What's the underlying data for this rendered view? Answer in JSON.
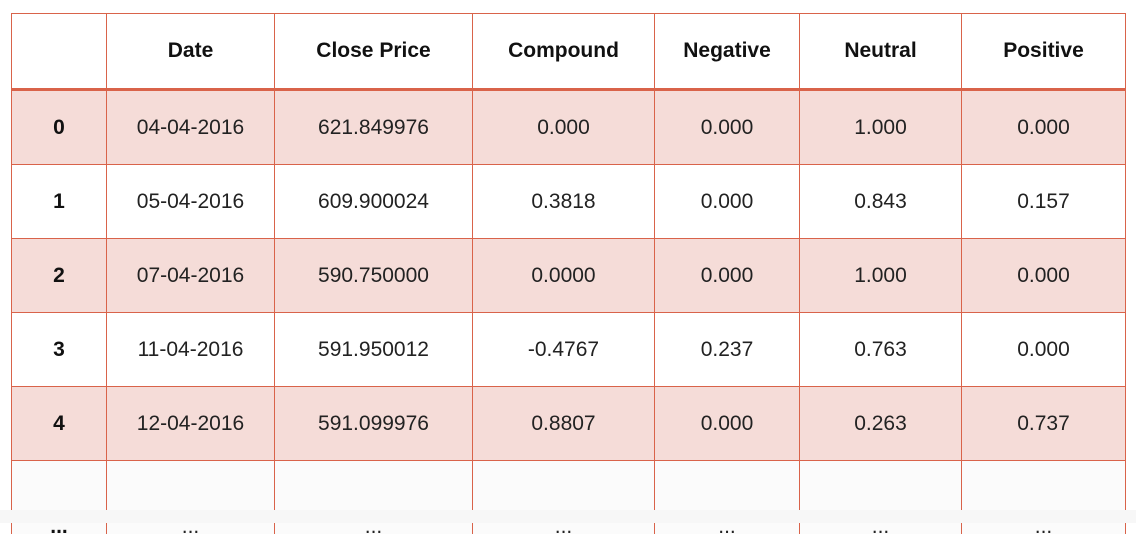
{
  "table": {
    "columns": [
      "",
      "Date",
      "Close Price",
      "Compound",
      "Negative",
      "Neutral",
      "Positive"
    ],
    "rows": [
      {
        "index": "0",
        "date": "04-04-2016",
        "close_price": "621.849976",
        "compound": "0.000",
        "negative": "0.000",
        "neutral": "1.000",
        "positive": "0.000"
      },
      {
        "index": "1",
        "date": "05-04-2016",
        "close_price": "609.900024",
        "compound": "0.3818",
        "negative": "0.000",
        "neutral": "0.843",
        "positive": "0.157"
      },
      {
        "index": "2",
        "date": "07-04-2016",
        "close_price": "590.750000",
        "compound": "0.0000",
        "negative": "0.000",
        "neutral": "1.000",
        "positive": "0.000"
      },
      {
        "index": "3",
        "date": "11-04-2016",
        "close_price": "591.950012",
        "compound": "-0.4767",
        "negative": "0.237",
        "neutral": "0.763",
        "positive": "0.000"
      },
      {
        "index": "4",
        "date": "12-04-2016",
        "close_price": "591.099976",
        "compound": "0.8807",
        "negative": "0.000",
        "neutral": "0.263",
        "positive": "0.737"
      }
    ],
    "ellipsis": "..."
  },
  "colors": {
    "border": "#d9634a",
    "shaded_row": "#f5dcd8",
    "plain_row": "#ffffff"
  }
}
